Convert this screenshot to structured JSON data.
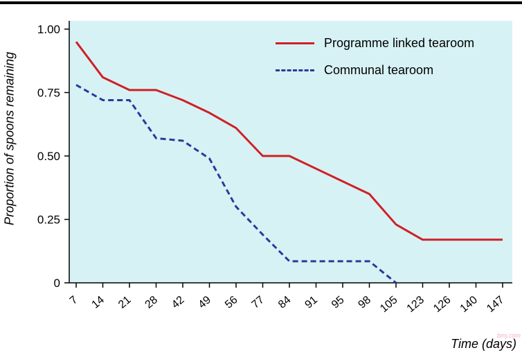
{
  "figure": {
    "watermark": "bmj.com"
  },
  "chart_data": {
    "type": "line",
    "title": "",
    "xlabel": "Time (days)",
    "ylabel": "Proportion of spoons remaining",
    "x_categories": [
      "7",
      "14",
      "21",
      "28",
      "42",
      "49",
      "56",
      "77",
      "84",
      "91",
      "95",
      "98",
      "105",
      "123",
      "126",
      "140",
      "147"
    ],
    "y_ticks": [
      "0",
      "0.25",
      "0.50",
      "0.75",
      "1.00"
    ],
    "ylim": [
      0,
      1.0
    ],
    "grid": false,
    "legend_position": "inside-top-right",
    "plot_bg": "#d7f2f4",
    "series": [
      {
        "name": "Programme linked tearoom",
        "color": "#cf2026",
        "style": "solid",
        "values": [
          0.95,
          0.81,
          0.76,
          0.76,
          0.72,
          0.67,
          0.61,
          0.5,
          0.5,
          0.45,
          0.4,
          0.35,
          0.23,
          0.17,
          0.17,
          0.17,
          0.17
        ]
      },
      {
        "name": "Communal tearoom",
        "color": "#2b3a9a",
        "style": "dashed",
        "values": [
          0.78,
          0.72,
          0.72,
          0.57,
          0.56,
          0.49,
          0.3,
          0.19,
          0.085,
          0.085,
          0.085,
          0.085,
          0.0,
          null,
          null,
          null,
          null
        ]
      }
    ]
  }
}
